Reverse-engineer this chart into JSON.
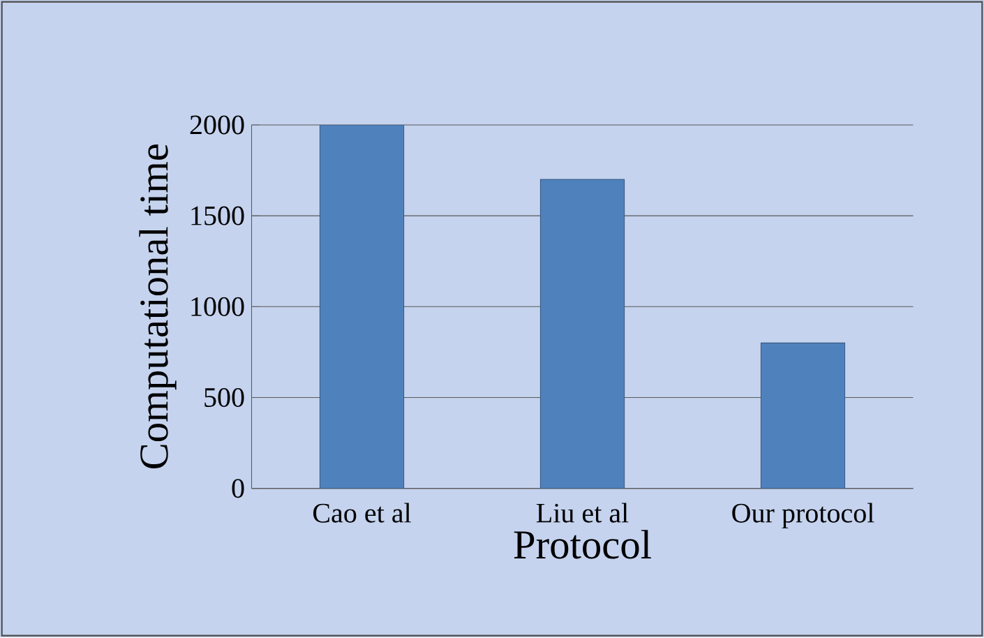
{
  "chart_data": {
    "type": "bar",
    "xlabel": "Protocol",
    "ylabel": "Computational time",
    "categories": [
      "Cao et al",
      "Liu et al",
      "Our protocol"
    ],
    "values": [
      2000,
      1700,
      800
    ],
    "color": "#4f81bd",
    "ylim": [
      0,
      2000
    ],
    "yticks": [
      0,
      500,
      1000,
      1500,
      2000
    ],
    "grid": "y"
  }
}
